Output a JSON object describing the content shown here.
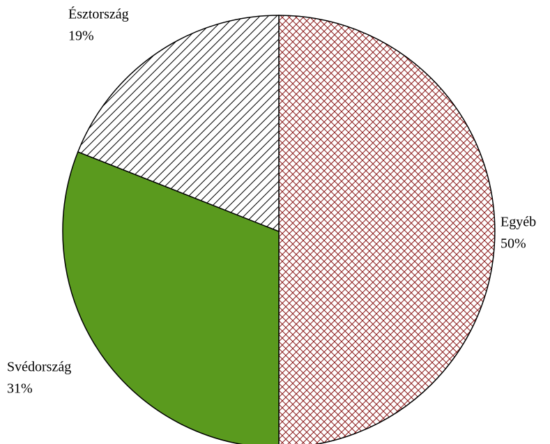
{
  "chart_data": {
    "type": "pie",
    "categories": [
      "Egyéb",
      "Svédország",
      "Észtország"
    ],
    "values": [
      50,
      31,
      19
    ],
    "value_labels": [
      "50%",
      "31%",
      "19%"
    ],
    "colors": [
      "#8b1a1a",
      "#5a9a1e",
      "#000000"
    ],
    "patterns": [
      "crosshatch",
      "solid",
      "diagonal"
    ]
  }
}
